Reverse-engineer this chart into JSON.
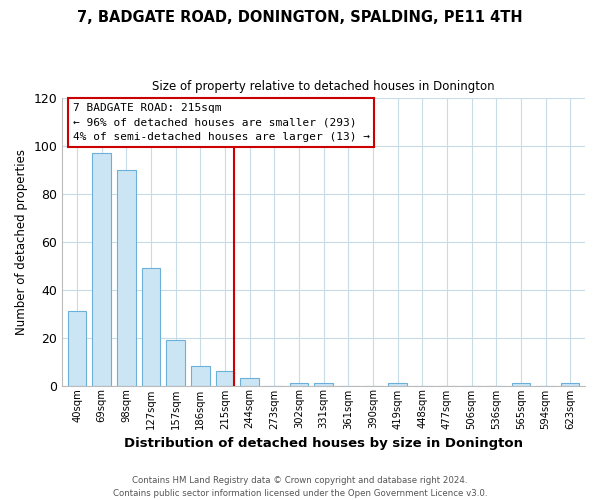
{
  "title": "7, BADGATE ROAD, DONINGTON, SPALDING, PE11 4TH",
  "subtitle": "Size of property relative to detached houses in Donington",
  "xlabel": "Distribution of detached houses by size in Donington",
  "ylabel": "Number of detached properties",
  "bar_labels": [
    "40sqm",
    "69sqm",
    "98sqm",
    "127sqm",
    "157sqm",
    "186sqm",
    "215sqm",
    "244sqm",
    "273sqm",
    "302sqm",
    "331sqm",
    "361sqm",
    "390sqm",
    "419sqm",
    "448sqm",
    "477sqm",
    "506sqm",
    "536sqm",
    "565sqm",
    "594sqm",
    "623sqm"
  ],
  "bar_values": [
    31,
    97,
    90,
    49,
    19,
    8,
    6,
    3,
    0,
    1,
    1,
    0,
    0,
    1,
    0,
    0,
    0,
    0,
    1,
    0,
    1
  ],
  "bar_color": "#cce5f5",
  "bar_edge_color": "#6ab0d8",
  "highlight_index": 6,
  "highlight_line_color": "#cc0000",
  "ylim": [
    0,
    120
  ],
  "yticks": [
    0,
    20,
    40,
    60,
    80,
    100,
    120
  ],
  "annotation_title": "7 BADGATE ROAD: 215sqm",
  "annotation_line1": "← 96% of detached houses are smaller (293)",
  "annotation_line2": "4% of semi-detached houses are larger (13) →",
  "footer1": "Contains HM Land Registry data © Crown copyright and database right 2024.",
  "footer2": "Contains public sector information licensed under the Open Government Licence v3.0.",
  "background_color": "#ffffff",
  "grid_color": "#c8dce8"
}
